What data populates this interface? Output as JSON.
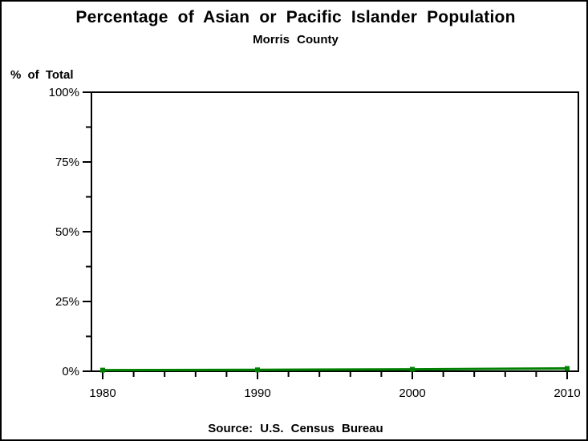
{
  "page": {
    "background_color": "#ffffff",
    "border_color": "#000000"
  },
  "header": {
    "title": "Percentage of Asian or Pacific Islander Population",
    "subtitle": "Morris County"
  },
  "footer": {
    "source": "Source: U.S. Census Bureau"
  },
  "chart_data": {
    "type": "line",
    "title": "Percentage of Asian or Pacific Islander Population",
    "subtitle": "Morris County",
    "ylabel": "% of Total",
    "xlabel": "",
    "x": [
      1980,
      1990,
      2000,
      2010
    ],
    "values": [
      0.4,
      0.5,
      0.7,
      1.0
    ],
    "ylim": [
      0,
      100
    ],
    "grid": false,
    "frame": true,
    "legend": "none",
    "line_color": "#008000",
    "marker": "square",
    "marker_color": "#008000",
    "axis_color": "#000000",
    "y_axis": {
      "major_ticks": [
        {
          "value": 0,
          "label": "0%"
        },
        {
          "value": 25,
          "label": "25%"
        },
        {
          "value": 50,
          "label": "50%"
        },
        {
          "value": 75,
          "label": "75%"
        },
        {
          "value": 100,
          "label": "100%"
        }
      ],
      "minor_ticks": [
        12.5,
        37.5,
        62.5,
        87.5
      ]
    },
    "x_axis": {
      "min": 1980,
      "max": 2010,
      "edge_padding_years": 0.73,
      "major_ticks": [
        {
          "value": 1980,
          "label": "1980"
        },
        {
          "value": 1990,
          "label": "1990"
        },
        {
          "value": 2000,
          "label": "2000"
        },
        {
          "value": 2010,
          "label": "2010"
        }
      ],
      "minor_ticks": [
        1982,
        1984,
        1986,
        1988,
        1992,
        1994,
        1996,
        1998,
        2002,
        2004,
        2006,
        2008
      ]
    },
    "source": "Source: U.S. Census Bureau"
  }
}
